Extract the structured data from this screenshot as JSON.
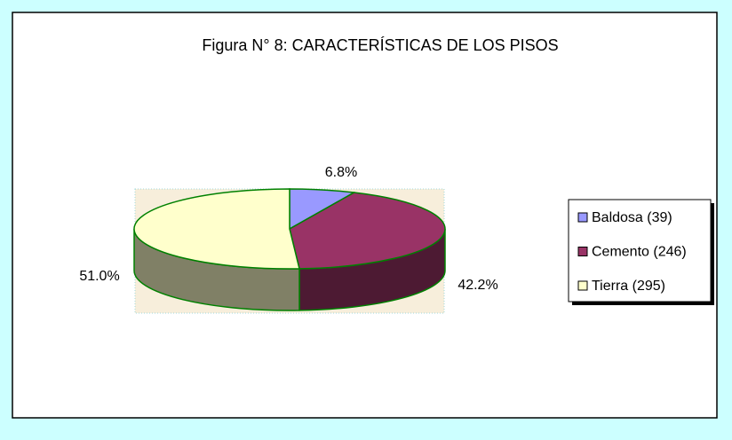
{
  "chart_data": {
    "type": "pie",
    "title": "Figura N° 8: CARACTERÍSTICAS DE LOS PISOS",
    "categories": [
      "Baldosa (39)",
      "Cemento (246)",
      "Tierra (295)"
    ],
    "values": [
      6.8,
      42.2,
      51.0
    ],
    "value_labels": [
      "6.8%",
      "42.2%",
      "51.0%"
    ],
    "colors": [
      "#9999ff",
      "#993366",
      "#ffffcc"
    ],
    "legend": "right",
    "start_angle": 0,
    "three_d": true
  }
}
